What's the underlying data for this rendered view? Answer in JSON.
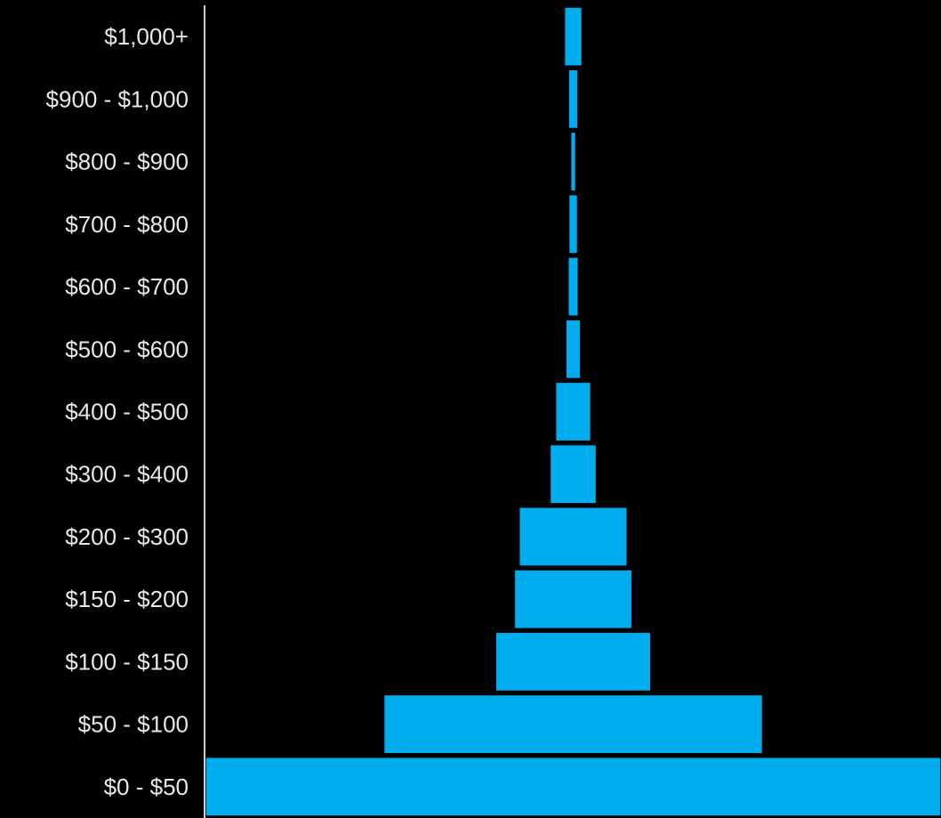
{
  "colors": {
    "background": "#000000",
    "bar": "#00aeef",
    "bar_edge": "#000000",
    "axis": "#cfcfcf",
    "label": "#e8e8e8"
  },
  "chart_data": {
    "type": "bar",
    "orientation": "horizontal",
    "layout": "centered-funnel",
    "categories": [
      "$1,000+",
      "$900 - $1,000",
      "$800 - $900",
      "$700 - $800",
      "$600 - $700",
      "$500 - $600",
      "$400 - $500",
      "$300 - $400",
      "$200 - $300",
      "$150 - $200",
      "$100 - $150",
      "$50 - $100",
      "$0 - $50"
    ],
    "values": [
      2.4,
      1.3,
      0.7,
      1.2,
      1.4,
      2.0,
      4.8,
      6.3,
      14.7,
      16.0,
      21.1,
      51.5,
      100
    ],
    "title": "",
    "xlabel": "",
    "ylabel": "",
    "xlim": [
      0,
      100
    ],
    "grid": false,
    "legend": "none"
  }
}
